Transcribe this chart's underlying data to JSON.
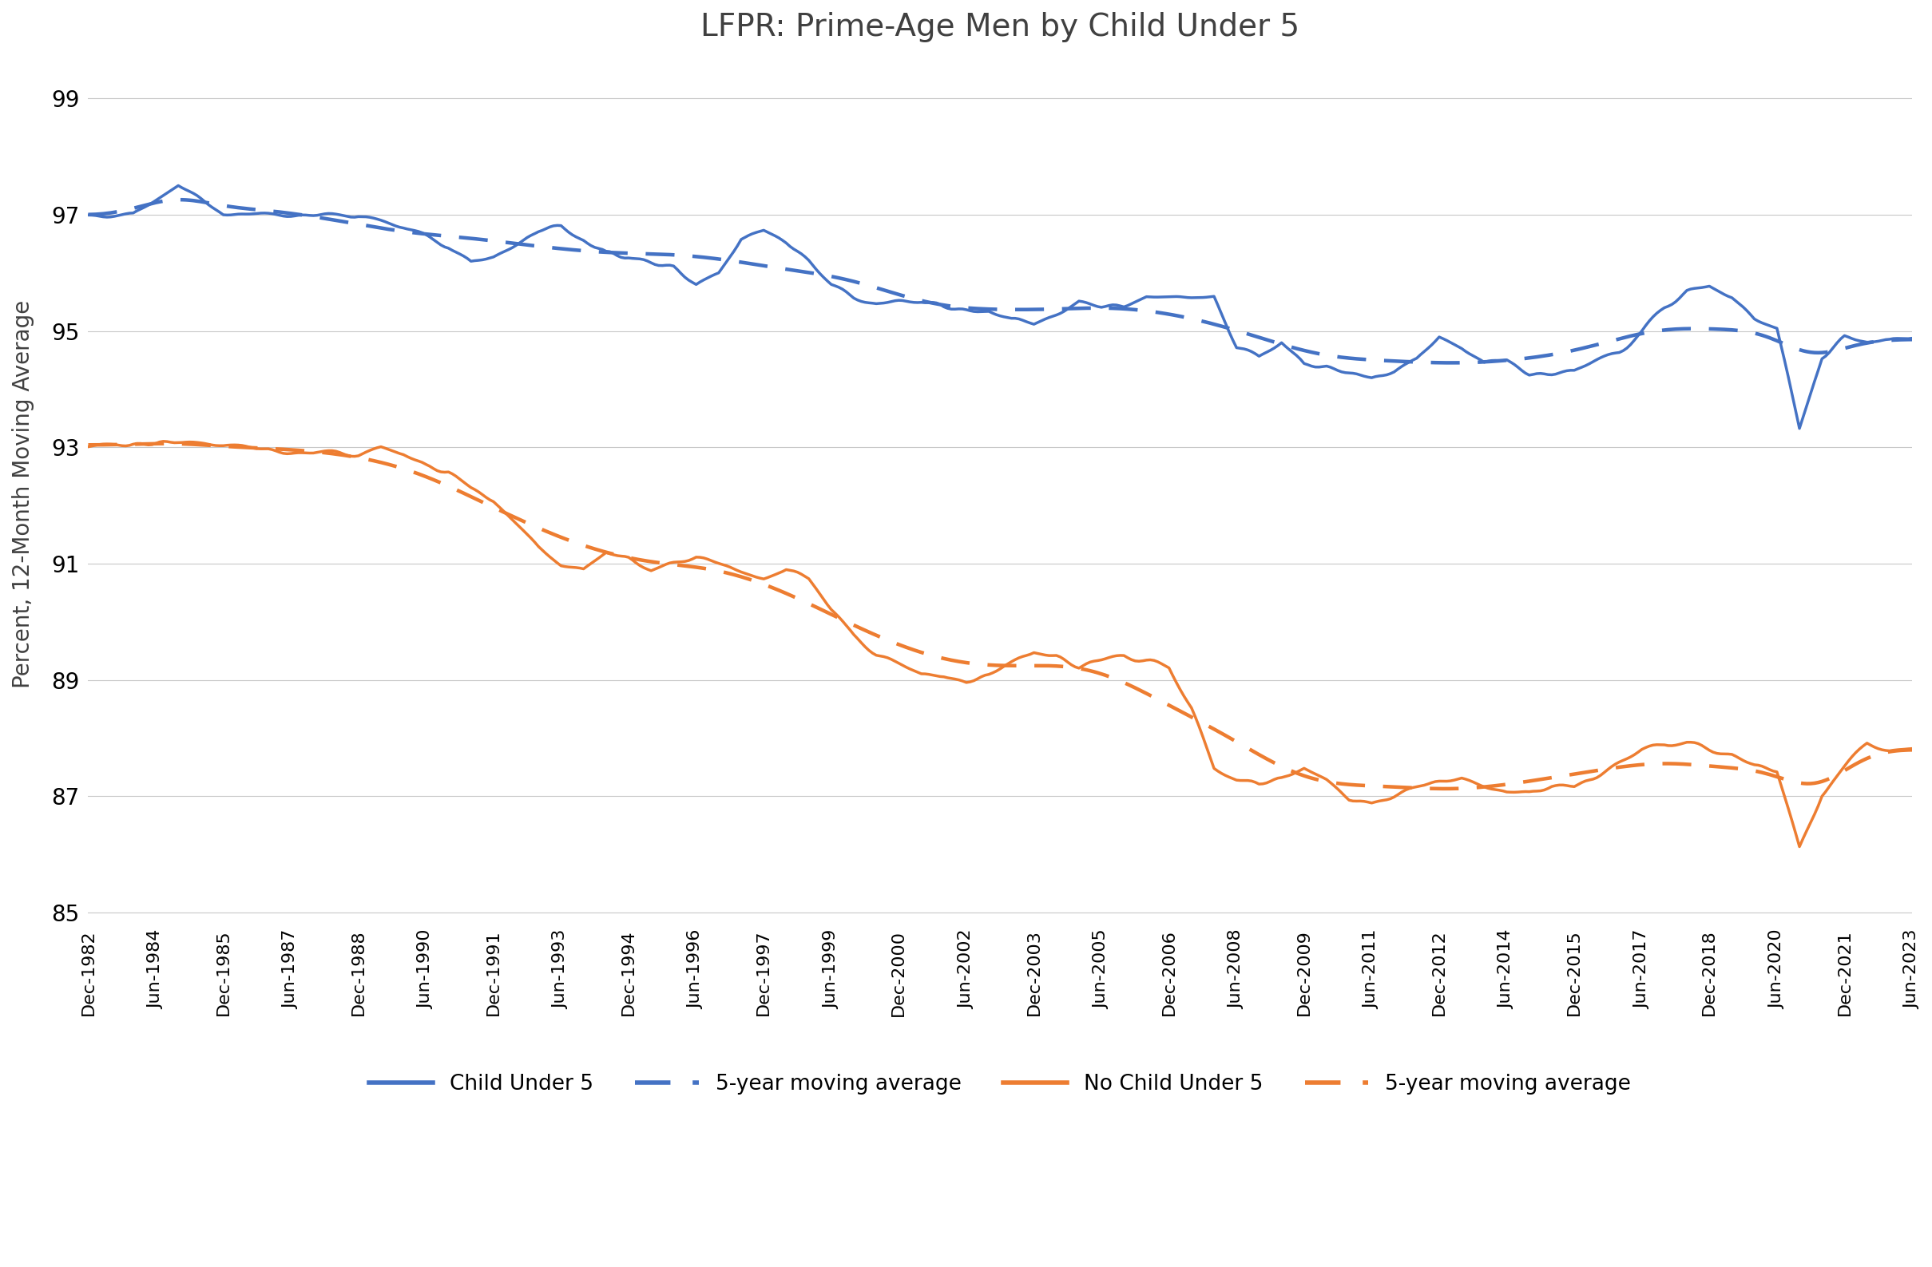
{
  "title": "LFPR: Prime-Age Men by Child Under 5",
  "ylabel": "Percent, 12-Month Moving Average",
  "ylim": [
    84.8,
    99.6
  ],
  "yticks": [
    85,
    87,
    89,
    91,
    93,
    95,
    97,
    99
  ],
  "color_child": "#4472C4",
  "color_nochild": "#ED7D31",
  "background": "#FFFFFF",
  "xtick_labels": [
    "Dec-1982",
    "Jun-1984",
    "Dec-1985",
    "Jun-1987",
    "Dec-1988",
    "Jun-1990",
    "Dec-1991",
    "Jun-1993",
    "Dec-1994",
    "Jun-1996",
    "Dec-1997",
    "Jun-1999",
    "Dec-2000",
    "Jun-2002",
    "Dec-2003",
    "Jun-2005",
    "Dec-2006",
    "Jun-2008",
    "Dec-2009",
    "Jun-2011",
    "Dec-2012",
    "Jun-2014",
    "Dec-2015",
    "Jun-2017",
    "Dec-2018",
    "Jun-2020",
    "Dec-2021",
    "Jun-2023"
  ],
  "xtick_months": [
    0,
    18,
    36,
    54,
    72,
    90,
    108,
    126,
    144,
    162,
    180,
    198,
    216,
    234,
    252,
    270,
    288,
    306,
    324,
    342,
    360,
    378,
    396,
    414,
    432,
    450,
    468,
    486
  ],
  "total_months": 487
}
